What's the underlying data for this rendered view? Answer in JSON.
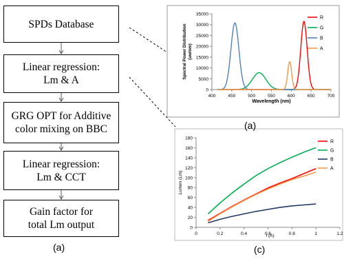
{
  "flowchart": {
    "steps": [
      "SPDs Database",
      "Linear regression:\nLm & A",
      "GRG  OPT for Additive\ncolor mixing on BBC",
      "Linear regression:\nLm & CCT",
      "Gain factor for\ntotal Lm output"
    ],
    "caption": "(a)"
  },
  "chart_data": [
    {
      "type": "line",
      "caption": "(a)",
      "xlabel": "Wavelength (nm)",
      "ylabel": "Spectral Power Distribution (uw/nm)",
      "xlim": [
        400,
        700
      ],
      "ylim": [
        0,
        35000
      ],
      "xticks": [
        400,
        450,
        500,
        550,
        600,
        650,
        700
      ],
      "yticks": [
        0,
        5000,
        10000,
        15000,
        20000,
        25000,
        30000,
        35000
      ],
      "legend_position": "top-right",
      "series": [
        {
          "name": "R",
          "color": "#ff0000",
          "peak_x": 632,
          "peak_y": 31500,
          "width": 8
        },
        {
          "name": "G",
          "color": "#00b050",
          "peak_x": 519,
          "peak_y": 7800,
          "width": 17
        },
        {
          "name": "B",
          "color": "#4f81bd",
          "peak_x": 458,
          "peak_y": 30800,
          "width": 10
        },
        {
          "name": "A",
          "color": "#f79646",
          "peak_x": 596,
          "peak_y": 12800,
          "width": 5
        }
      ]
    },
    {
      "type": "line",
      "caption": "(c)",
      "xlabel": "I (A)",
      "ylabel": "Lumen (Lm)",
      "xlim": [
        0,
        1.2
      ],
      "ylim": [
        0,
        180
      ],
      "xticks": [
        "0",
        "0.2",
        "0.4",
        "0.6",
        "0.8",
        "1",
        "1.2"
      ],
      "yticks": [
        "0",
        "20",
        "40",
        "60",
        "80",
        "100",
        "120",
        "140",
        "160",
        "180"
      ],
      "legend_position": "top-right",
      "x": [
        0.1,
        0.2,
        0.3,
        0.4,
        0.5,
        0.6,
        0.7,
        0.8,
        0.9,
        1.0
      ],
      "series": [
        {
          "name": "R",
          "color": "#ff0000",
          "values": [
            14,
            28,
            42,
            55,
            67,
            79,
            89,
            98,
            108,
            118
          ]
        },
        {
          "name": "G",
          "color": "#00b050",
          "values": [
            27,
            49,
            69,
            87,
            104,
            118,
            130,
            141,
            151,
            160
          ]
        },
        {
          "name": "B",
          "color": "#1f3864",
          "values": [
            9,
            16,
            22,
            27,
            32,
            36,
            40,
            43,
            45,
            47
          ]
        },
        {
          "name": "A",
          "color": "#f79646",
          "values": [
            12,
            27,
            41,
            54,
            66,
            77,
            87,
            96,
            103,
            111
          ]
        }
      ]
    }
  ]
}
